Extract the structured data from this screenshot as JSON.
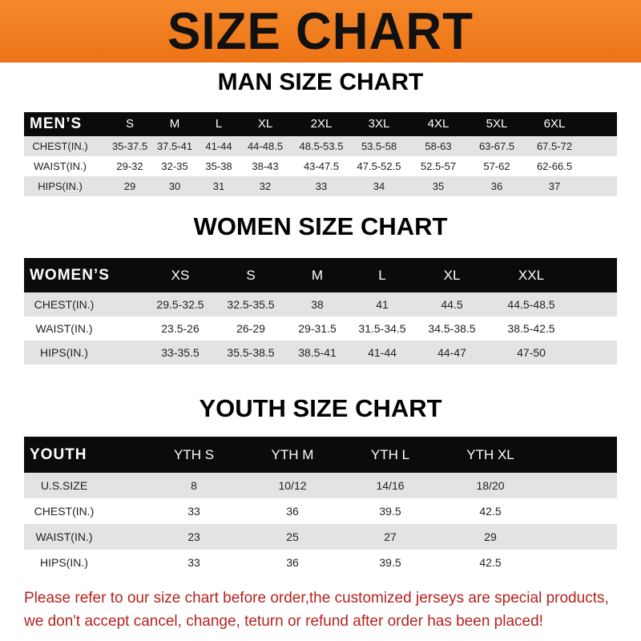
{
  "title": "SIZE CHART",
  "colors": {
    "banner": "#ef7d1d",
    "header_row": "#0b0b0b",
    "stripe": "#e3e3e3",
    "note": "#b5231f"
  },
  "men": {
    "title": "MAN SIZE CHART",
    "header_label": "MEN’S",
    "sizes": [
      "S",
      "M",
      "L",
      "XL",
      "2XL",
      "3XL",
      "4XL",
      "5XL",
      "6XL"
    ],
    "rows": [
      {
        "label": "CHEST(IN.)",
        "values": [
          "35-37.5",
          "37.5-41",
          "41-44",
          "44-48.5",
          "48.5-53.5",
          "53.5-58",
          "58-63",
          "63-67.5",
          "67.5-72"
        ]
      },
      {
        "label": "WAIST(IN.)",
        "values": [
          "29-32",
          "32-35",
          "35-38",
          "38-43",
          "43-47.5",
          "47.5-52.5",
          "52.5-57",
          "57-62",
          "62-66.5"
        ]
      },
      {
        "label": "HIPS(IN.)",
        "values": [
          "29",
          "30",
          "31",
          "32",
          "33",
          "34",
          "35",
          "36",
          "37"
        ]
      }
    ]
  },
  "women": {
    "title": "WOMEN SIZE CHART",
    "header_label": "WOMEN’S",
    "sizes": [
      "XS",
      "S",
      "M",
      "L",
      "XL",
      "XXL"
    ],
    "rows": [
      {
        "label": "CHEST(IN.)",
        "values": [
          "29.5-32.5",
          "32.5-35.5",
          "38",
          "41",
          "44.5",
          "44.5-48.5"
        ]
      },
      {
        "label": "WAIST(IN.)",
        "values": [
          "23.5-26",
          "26-29",
          "29-31.5",
          "31.5-34.5",
          "34.5-38.5",
          "38.5-42.5"
        ]
      },
      {
        "label": "HIPS(IN.)",
        "values": [
          "33-35.5",
          "35.5-38.5",
          "38.5-41",
          "41-44",
          "44-47",
          "47-50"
        ]
      }
    ]
  },
  "youth": {
    "title": "YOUTH SIZE CHART",
    "header_label": "YOUTH",
    "sizes": [
      "YTH S",
      "YTH M",
      "YTH L",
      "YTH XL"
    ],
    "rows": [
      {
        "label": "U.S.SIZE",
        "values": [
          "8",
          "10/12",
          "14/16",
          "18/20"
        ]
      },
      {
        "label": "CHEST(IN.)",
        "values": [
          "33",
          "36",
          "39.5",
          "42.5"
        ]
      },
      {
        "label": "WAIST(IN.)",
        "values": [
          "23",
          "25",
          "27",
          "29"
        ]
      },
      {
        "label": "HIPS(IN.)",
        "values": [
          "33",
          "36",
          "39.5",
          "42.5"
        ]
      }
    ]
  },
  "note": {
    "line1": "Please refer to our size chart before order,the customized jerseys are special products,",
    "line2": "we don't accept cancel, change, teturn or refund after order has been placed!"
  }
}
